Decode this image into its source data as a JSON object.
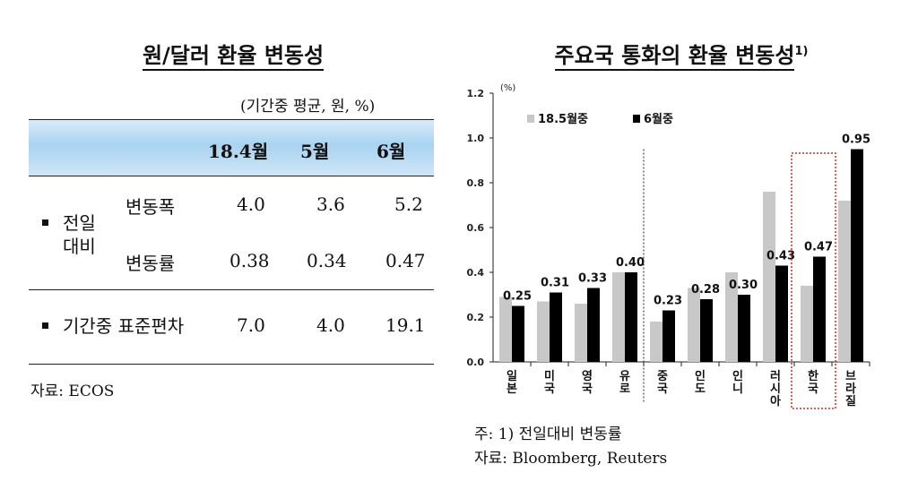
{
  "left_table": {
    "title": "원/달러 환율 변동성",
    "unit_note": "(기간중 평균, 원, %)",
    "columns": [
      "18.4월",
      "5월",
      "6월"
    ],
    "group_label": [
      "전일",
      "대비"
    ],
    "rows": [
      {
        "label": "변동폭",
        "values": [
          "4.0",
          "3.6",
          "5.2"
        ]
      },
      {
        "label": "변동률",
        "values": [
          "0.38",
          "0.34",
          "0.47"
        ]
      },
      {
        "label": "기간중 표준편차",
        "values": [
          "7.0",
          "4.0",
          "19.1"
        ]
      }
    ],
    "source": "자료: ECOS"
  },
  "right_chart": {
    "title": "주요국 통화의 환율 변동성",
    "title_sup": "1)",
    "footnote": "주: 1) 전일대비 변동률",
    "source": "자료: Bloomberg, Reuters"
  },
  "chart_data": {
    "type": "bar",
    "title": "주요국 통화의 환율 변동성",
    "ylabel": "(%)",
    "ylim": [
      0,
      1.2
    ],
    "yticks": [
      "0.0",
      "0.2",
      "0.4",
      "0.6",
      "0.8",
      "1.0",
      "1.2"
    ],
    "categories": [
      "일본",
      "미국",
      "영국",
      "유로",
      "중국",
      "인도",
      "인니",
      "러시아",
      "한국",
      "브라질"
    ],
    "series": [
      {
        "name": "18.5월중",
        "color": "#c8c8c8",
        "values": [
          0.29,
          0.27,
          0.26,
          0.4,
          0.18,
          0.33,
          0.4,
          0.76,
          0.34,
          0.72
        ]
      },
      {
        "name": "6월중",
        "color": "#000000",
        "values": [
          0.25,
          0.31,
          0.33,
          0.4,
          0.23,
          0.28,
          0.3,
          0.43,
          0.47,
          0.95
        ],
        "labels": [
          "0.25",
          "0.31",
          "0.33",
          "0.40",
          "0.23",
          "0.28",
          "0.30",
          "0.43",
          "0.47",
          "0.95"
        ]
      }
    ],
    "legend_position": "top-left",
    "highlight_category": "한국",
    "separator_after": "유로"
  }
}
